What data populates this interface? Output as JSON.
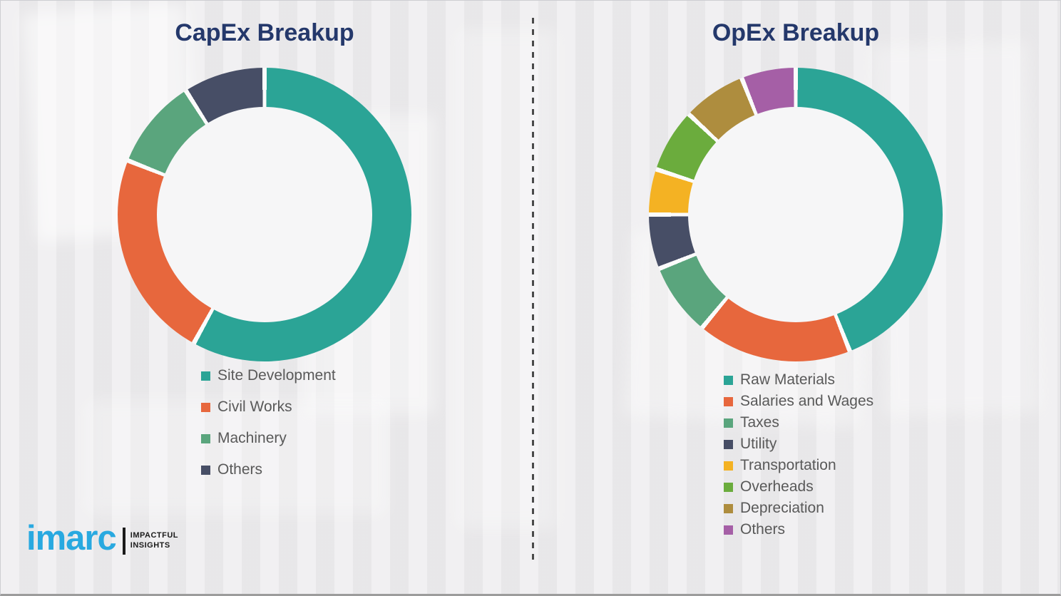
{
  "page": {
    "background_color": "#ecebed",
    "title_color": "#24386b",
    "legend_text_color": "#595959",
    "divider": "vertical-dashed-gray-line"
  },
  "logo": {
    "brand": "imarc",
    "brand_color": "#29a9e0",
    "tagline_line1": "IMPACTFUL",
    "tagline_line2": "INSIGHTS"
  },
  "chart_data": [
    {
      "type": "pie",
      "subtype": "donut",
      "title": "CapEx Breakup",
      "legend_position": "below",
      "start_angle_deg": 0,
      "direction": "clockwise",
      "segments": [
        {
          "label": "Site Development",
          "value": 58,
          "color": "#2ba496"
        },
        {
          "label": "Civil Works",
          "value": 23,
          "color": "#e7673d"
        },
        {
          "label": "Machinery",
          "value": 10,
          "color": "#5aa57d"
        },
        {
          "label": "Others",
          "value": 9,
          "color": "#474e66"
        }
      ]
    },
    {
      "type": "pie",
      "subtype": "donut",
      "title": "OpEx Breakup",
      "legend_position": "below",
      "start_angle_deg": 0,
      "direction": "clockwise",
      "segments": [
        {
          "label": "Raw Materials",
          "value": 44,
          "color": "#2ba496"
        },
        {
          "label": "Salaries and Wages",
          "value": 17,
          "color": "#e7673d"
        },
        {
          "label": "Taxes",
          "value": 8,
          "color": "#5aa57d"
        },
        {
          "label": "Utility",
          "value": 6,
          "color": "#474e66"
        },
        {
          "label": "Transportation",
          "value": 5,
          "color": "#f4b223"
        },
        {
          "label": "Overheads",
          "value": 7,
          "color": "#6bac3d"
        },
        {
          "label": "Depreciation",
          "value": 7,
          "color": "#ae8d3e"
        },
        {
          "label": "Others",
          "value": 6,
          "color": "#a55fa6"
        }
      ]
    }
  ]
}
